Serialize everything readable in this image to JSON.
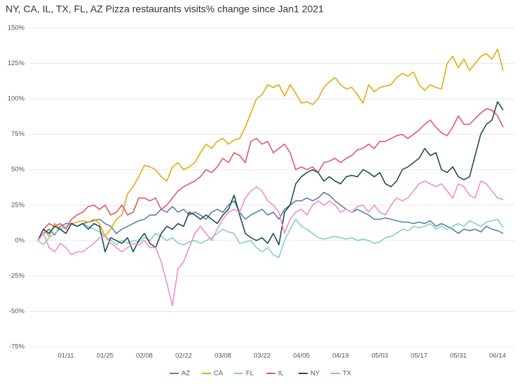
{
  "chart_data": {
    "type": "line",
    "title": "NY, CA, IL, TX, FL, AZ Pizza restaurants visits% change since Jan1 2021",
    "categories": [
      null,
      null,
      null,
      null,
      null,
      "01/11",
      null,
      null,
      null,
      null,
      null,
      null,
      "01/25",
      null,
      null,
      null,
      null,
      null,
      null,
      "02/08",
      null,
      null,
      null,
      null,
      null,
      null,
      "02/22",
      null,
      null,
      null,
      null,
      null,
      null,
      "03/08",
      null,
      null,
      null,
      null,
      null,
      null,
      "03/22",
      null,
      null,
      null,
      null,
      null,
      null,
      "04/05",
      null,
      null,
      null,
      null,
      null,
      null,
      "04/19",
      null,
      null,
      null,
      null,
      null,
      null,
      "05/03",
      null,
      null,
      null,
      null,
      null,
      null,
      "05/17",
      null,
      null,
      null,
      null,
      null,
      null,
      "05/31",
      null,
      null,
      null,
      null,
      null,
      null,
      "06/14",
      null
    ],
    "ylim": [
      -75,
      150
    ],
    "yticks": [
      {
        "value": 150,
        "label": "150%"
      },
      {
        "value": 125,
        "label": "125%"
      },
      {
        "value": 100,
        "label": "100%"
      },
      {
        "value": 75,
        "label": "75%"
      },
      {
        "value": 50,
        "label": "50%"
      },
      {
        "value": 25,
        "label": "25%"
      },
      {
        "value": 0,
        "label": "0%"
      },
      {
        "value": -25,
        "label": "-25%"
      },
      {
        "value": -50,
        "label": "-50%"
      },
      {
        "value": -75,
        "label": "-75%"
      }
    ],
    "grid": true,
    "legend": "bottom",
    "series": [
      {
        "name": "AZ",
        "color": "#5b80a8",
        "values": [
          0,
          5,
          8,
          4,
          10,
          12,
          12,
          10,
          12,
          13,
          14,
          15,
          12,
          10,
          5,
          8,
          10,
          12,
          14,
          15,
          18,
          18,
          22,
          20,
          24,
          20,
          22,
          18,
          20,
          18,
          15,
          20,
          22,
          20,
          25,
          28,
          20,
          15,
          18,
          20,
          22,
          18,
          20,
          15,
          22,
          25,
          28,
          28,
          30,
          28,
          30,
          34,
          32,
          28,
          25,
          22,
          20,
          22,
          20,
          18,
          15,
          15,
          16,
          15,
          14,
          13,
          13,
          12,
          13,
          12,
          14,
          10,
          12,
          10,
          8,
          5,
          8,
          7,
          8,
          6,
          10,
          8,
          7,
          5
        ]
      },
      {
        "name": "CA",
        "color": "#e8a90c",
        "values": [
          0,
          8,
          3,
          12,
          8,
          10,
          12,
          13,
          14,
          13,
          15,
          12,
          3,
          8,
          15,
          18,
          33,
          38,
          45,
          53,
          52,
          50,
          45,
          42,
          52,
          55,
          50,
          52,
          55,
          62,
          68,
          65,
          70,
          72,
          68,
          71,
          72,
          80,
          90,
          100,
          103,
          110,
          108,
          110,
          102,
          110,
          104,
          97,
          98,
          96,
          100,
          108,
          112,
          115,
          110,
          107,
          108,
          103,
          97,
          110,
          105,
          108,
          109,
          110,
          115,
          118,
          116,
          119,
          110,
          106,
          110,
          108,
          107,
          125,
          130,
          122,
          128,
          120,
          125,
          130,
          132,
          128,
          135,
          120
        ]
      },
      {
        "name": "FL",
        "color": "#7fd4bf",
        "values": [
          0,
          -3,
          2,
          5,
          8,
          10,
          12,
          10,
          12,
          10,
          8,
          6,
          3,
          0,
          -3,
          0,
          -2,
          0,
          -1,
          2,
          0,
          5,
          3,
          0,
          2,
          -2,
          -3,
          -1,
          0,
          -2,
          0,
          2,
          5,
          8,
          6,
          5,
          -2,
          -1,
          0,
          -5,
          -8,
          -5,
          -10,
          -12,
          0,
          8,
          15,
          10,
          8,
          5,
          2,
          1,
          2,
          3,
          2,
          1,
          2,
          0,
          1,
          0,
          -2,
          -1,
          2,
          3,
          5,
          8,
          7,
          10,
          9,
          10,
          12,
          8,
          10,
          8,
          10,
          12,
          10,
          14,
          12,
          10,
          13,
          14,
          15,
          9
        ]
      },
      {
        "name": "IL",
        "color": "#e35a66",
        "values": [
          0,
          8,
          12,
          10,
          12,
          8,
          15,
          18,
          20,
          24,
          25,
          22,
          25,
          18,
          20,
          25,
          18,
          20,
          30,
          30,
          28,
          30,
          22,
          25,
          30,
          35,
          38,
          40,
          42,
          45,
          50,
          48,
          52,
          58,
          55,
          62,
          60,
          55,
          70,
          72,
          68,
          70,
          62,
          65,
          68,
          62,
          50,
          52,
          50,
          52,
          48,
          55,
          56,
          58,
          55,
          58,
          60,
          64,
          65,
          68,
          65,
          70,
          70,
          72,
          74,
          75,
          72,
          75,
          78,
          82,
          85,
          80,
          76,
          74,
          80,
          88,
          82,
          82,
          86,
          90,
          93,
          92,
          88,
          80
        ]
      },
      {
        "name": "NY",
        "color": "#1e4d57",
        "values": [
          0,
          8,
          5,
          10,
          8,
          5,
          12,
          10,
          12,
          8,
          12,
          10,
          -8,
          2,
          0,
          -2,
          2,
          -8,
          0,
          5,
          -2,
          -5,
          5,
          10,
          8,
          12,
          10,
          20,
          18,
          15,
          18,
          15,
          12,
          18,
          22,
          32,
          18,
          5,
          2,
          0,
          2,
          -2,
          5,
          -3,
          20,
          25,
          40,
          45,
          48,
          50,
          48,
          42,
          45,
          42,
          40,
          45,
          46,
          45,
          50,
          48,
          45,
          48,
          40,
          38,
          42,
          50,
          52,
          55,
          58,
          65,
          60,
          62,
          50,
          48,
          52,
          45,
          43,
          45,
          60,
          75,
          82,
          85,
          98,
          92
        ]
      },
      {
        "name": "TX",
        "color": "#f08fc8",
        "values": [
          0,
          5,
          -5,
          -8,
          -2,
          -5,
          -10,
          -8,
          -8,
          -5,
          -2,
          2,
          3,
          -2,
          -5,
          -8,
          -5,
          -2,
          -3,
          0,
          -5,
          -5,
          -15,
          -30,
          -46,
          -20,
          -15,
          -5,
          5,
          10,
          5,
          0,
          8,
          15,
          20,
          22,
          20,
          30,
          35,
          38,
          35,
          28,
          25,
          20,
          5,
          15,
          20,
          22,
          18,
          25,
          28,
          25,
          28,
          25,
          20,
          22,
          20,
          24,
          25,
          20,
          25,
          20,
          18,
          25,
          30,
          28,
          30,
          35,
          40,
          42,
          40,
          38,
          40,
          35,
          30,
          40,
          38,
          32,
          30,
          42,
          40,
          35,
          30,
          29
        ]
      }
    ]
  }
}
